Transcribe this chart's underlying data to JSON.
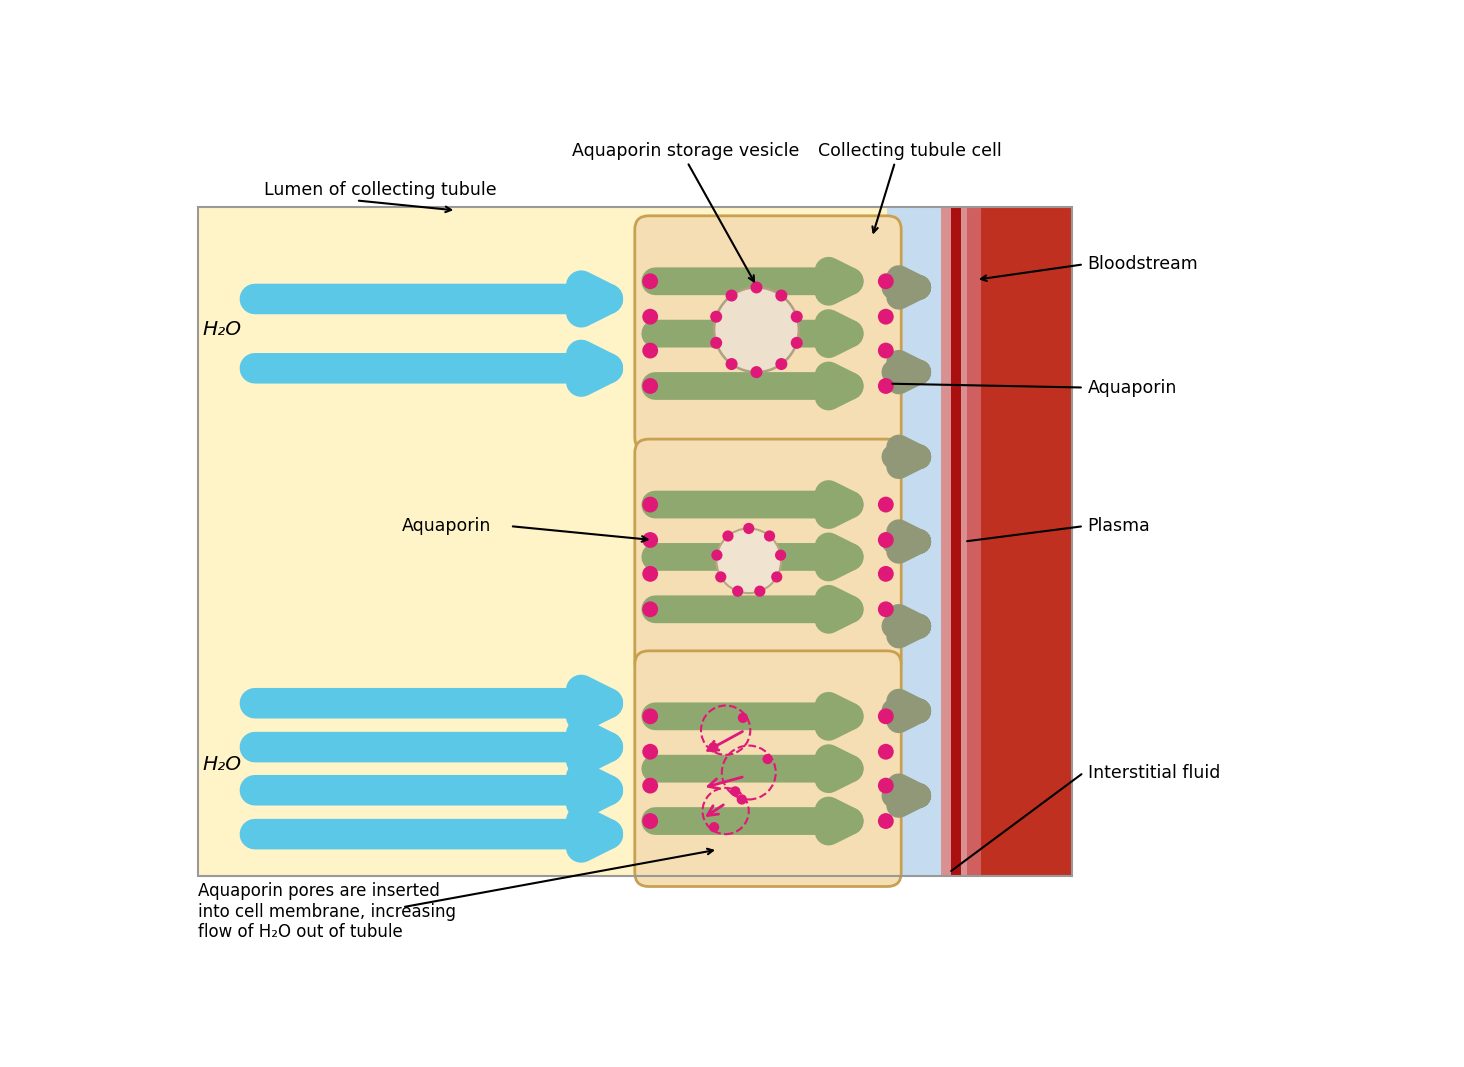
{
  "lumen_color": "#FFF3C8",
  "cell_fill": "#F2CFA0",
  "cell_edge": "#C8A050",
  "cell_inner_fill": "#F5DEB3",
  "interstitial_color": "#C5DCF0",
  "bv_pink": "#E8B0A0",
  "bv_red": "#C03020",
  "bv_dark": "#A02010",
  "water_arrow_color": "#5BC8E8",
  "flow_arrow_color": "#8FA870",
  "flow_arrow_edge": "#7A9060",
  "aquaporin_dot_color": "#E01878",
  "bv_arrow_color": "#909878",
  "labels": {
    "lumen": "Lumen of collecting tubule",
    "storage_vesicle": "Aquaporin storage vesicle",
    "collecting_cell": "Collecting tubule cell",
    "bloodstream": "Bloodstream",
    "aquaporin_right": "Aquaporin",
    "aquaporin_left": "Aquaporin",
    "plasma": "Plasma",
    "interstitial": "Interstitial fluid",
    "h2o_top": "H₂O",
    "h2o_bottom": "H₂O",
    "inserted_text": "Aquaporin pores are inserted\ninto cell membrane, increasing\nflow of H₂O out of tubule"
  },
  "fig_width": 14.64,
  "fig_height": 10.67
}
